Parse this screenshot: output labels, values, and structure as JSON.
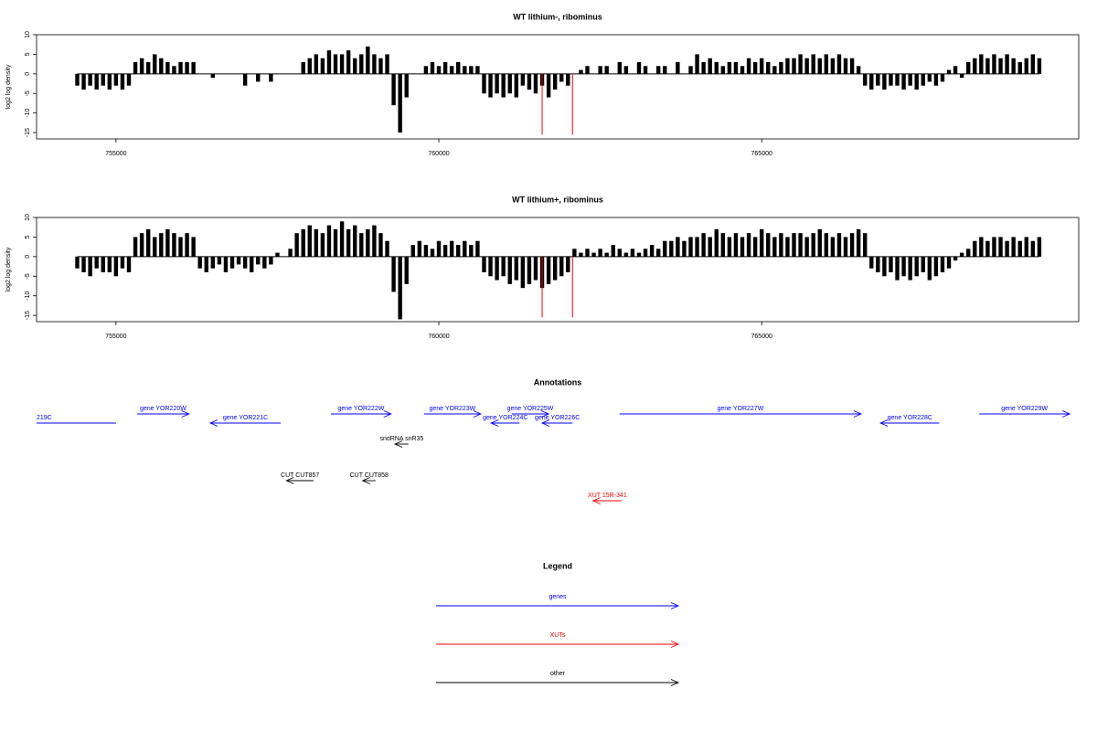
{
  "chart_data": [
    {
      "type": "bar",
      "title": "WT lithium-, ribominus",
      "ylabel": "log2 log density",
      "color": "#000000",
      "xlim": [
        753770,
        769910
      ],
      "xticks": [
        755000,
        760000,
        765000
      ],
      "ylim": [
        -16.6,
        10
      ],
      "yticks": [
        10,
        5,
        0,
        -5,
        -10,
        -15
      ],
      "x": [
        754400,
        754500,
        754600,
        754700,
        754800,
        754900,
        755000,
        755100,
        755200,
        755300,
        755400,
        755500,
        755600,
        755700,
        755800,
        755900,
        756000,
        756100,
        756200,
        756300,
        756400,
        756500,
        756600,
        756700,
        756800,
        756900,
        757000,
        757100,
        757200,
        757300,
        757400,
        757500,
        757600,
        757700,
        757800,
        757900,
        758000,
        758100,
        758200,
        758300,
        758400,
        758500,
        758600,
        758700,
        758800,
        758900,
        759000,
        759100,
        759200,
        759300,
        759400,
        759500,
        759600,
        759700,
        759800,
        759900,
        760000,
        760100,
        760200,
        760300,
        760400,
        760500,
        760600,
        760700,
        760800,
        760900,
        761000,
        761100,
        761200,
        761300,
        761400,
        761500,
        761600,
        761700,
        761800,
        761900,
        762000,
        762100,
        762200,
        762300,
        762400,
        762500,
        762600,
        762700,
        762800,
        762900,
        763000,
        763100,
        763200,
        763300,
        763400,
        763500,
        763600,
        763700,
        763800,
        763900,
        764000,
        764100,
        764200,
        764300,
        764400,
        764500,
        764600,
        764700,
        764800,
        764900,
        765000,
        765100,
        765200,
        765300,
        765400,
        765500,
        765600,
        765700,
        765800,
        765900,
        766000,
        766100,
        766200,
        766300,
        766400,
        766500,
        766600,
        766700,
        766800,
        766900,
        767000,
        767100,
        767200,
        767300,
        767400,
        767500,
        767600,
        767700,
        767800,
        767900,
        768000,
        768100,
        768200,
        768300,
        768400,
        768500,
        768600,
        768700,
        768800,
        768900,
        769000,
        769100,
        769200,
        769300
      ],
      "values": [
        -3,
        -4,
        -3,
        -4,
        -3,
        -4,
        -3,
        -4,
        -3,
        3,
        4,
        3,
        5,
        4,
        3,
        2,
        3,
        3,
        3,
        0,
        0,
        -1,
        0,
        0,
        0,
        0,
        -3,
        0,
        -2,
        0,
        -2,
        0,
        0,
        0,
        0,
        3,
        4,
        5,
        4,
        6,
        5,
        5,
        6,
        4,
        5,
        7,
        5,
        4,
        5,
        -8,
        -15,
        -6,
        0,
        0,
        2,
        3,
        2,
        3,
        2,
        3,
        2,
        2,
        2,
        -5,
        -6,
        -5,
        -6,
        -5,
        -6,
        -3,
        -4,
        -5,
        -3,
        -6,
        -4,
        -2,
        -3,
        0,
        1,
        2,
        0,
        2,
        2,
        0,
        3,
        2,
        0,
        3,
        2,
        0,
        2,
        2,
        0,
        3,
        0,
        2,
        5,
        3,
        4,
        3,
        2,
        3,
        3,
        2,
        4,
        3,
        4,
        3,
        2,
        3,
        4,
        4,
        5,
        4,
        5,
        4,
        5,
        4,
        5,
        4,
        4,
        2,
        -3,
        -4,
        -3,
        -4,
        -3,
        -3,
        -4,
        -3,
        -4,
        -3,
        -2,
        -3,
        -2,
        1,
        2,
        -1,
        3,
        4,
        5,
        4,
        5,
        4,
        5,
        4,
        3,
        4,
        5,
        4
      ],
      "markers": {
        "color": "#ff0000",
        "x": [
          761600,
          762070
        ],
        "values": [
          -15.5,
          -15.5
        ]
      }
    },
    {
      "type": "bar",
      "title": "WT lithium+, ribominus",
      "ylabel": "log2 log density",
      "color": "#000000",
      "xlim": [
        753770,
        769910
      ],
      "xticks": [
        755000,
        760000,
        765000
      ],
      "ylim": [
        -16.6,
        10
      ],
      "yticks": [
        10,
        5,
        0,
        -5,
        -10,
        -15
      ],
      "x": [
        754400,
        754500,
        754600,
        754700,
        754800,
        754900,
        755000,
        755100,
        755200,
        755300,
        755400,
        755500,
        755600,
        755700,
        755800,
        755900,
        756000,
        756100,
        756200,
        756300,
        756400,
        756500,
        756600,
        756700,
        756800,
        756900,
        757000,
        757100,
        757200,
        757300,
        757400,
        757500,
        757600,
        757700,
        757800,
        757900,
        758000,
        758100,
        758200,
        758300,
        758400,
        758500,
        758600,
        758700,
        758800,
        758900,
        759000,
        759100,
        759200,
        759300,
        759400,
        759500,
        759600,
        759700,
        759800,
        759900,
        760000,
        760100,
        760200,
        760300,
        760400,
        760500,
        760600,
        760700,
        760800,
        760900,
        761000,
        761100,
        761200,
        761300,
        761400,
        761500,
        761600,
        761700,
        761800,
        761900,
        762000,
        762100,
        762200,
        762300,
        762400,
        762500,
        762600,
        762700,
        762800,
        762900,
        763000,
        763100,
        763200,
        763300,
        763400,
        763500,
        763600,
        763700,
        763800,
        763900,
        764000,
        764100,
        764200,
        764300,
        764400,
        764500,
        764600,
        764700,
        764800,
        764900,
        765000,
        765100,
        765200,
        765300,
        765400,
        765500,
        765600,
        765700,
        765800,
        765900,
        766000,
        766100,
        766200,
        766300,
        766400,
        766500,
        766600,
        766700,
        766800,
        766900,
        767000,
        767100,
        767200,
        767300,
        767400,
        767500,
        767600,
        767700,
        767800,
        767900,
        768000,
        768100,
        768200,
        768300,
        768400,
        768500,
        768600,
        768700,
        768800,
        768900,
        769000,
        769100,
        769200,
        769300
      ],
      "values": [
        -3,
        -4,
        -5,
        -3,
        -4,
        -4,
        -5,
        -3,
        -4,
        5,
        6,
        7,
        5,
        6,
        7,
        6,
        5,
        6,
        5,
        -3,
        -4,
        -3,
        -2,
        -4,
        -3,
        -2,
        -3,
        -4,
        -2,
        -3,
        -2,
        1,
        0,
        2,
        6,
        7,
        8,
        7,
        6,
        8,
        7,
        9,
        7,
        8,
        6,
        7,
        8,
        6,
        4,
        -9,
        -16,
        -7,
        3,
        4,
        3,
        2,
        4,
        3,
        4,
        3,
        4,
        3,
        4,
        -4,
        -5,
        -6,
        -5,
        -7,
        -6,
        -8,
        -7,
        -6,
        -8,
        -7,
        -6,
        -5,
        -4,
        2,
        1,
        2,
        1,
        2,
        1,
        3,
        2,
        1,
        2,
        1,
        2,
        3,
        2,
        4,
        4,
        5,
        4,
        5,
        5,
        6,
        5,
        7,
        6,
        5,
        6,
        5,
        6,
        5,
        7,
        6,
        5,
        6,
        5,
        6,
        6,
        5,
        6,
        7,
        6,
        5,
        6,
        5,
        6,
        7,
        6,
        -3,
        -4,
        -5,
        -4,
        -6,
        -5,
        -6,
        -5,
        -4,
        -6,
        -5,
        -4,
        -3,
        -1,
        1,
        2,
        4,
        5,
        4,
        5,
        5,
        4,
        5,
        4,
        5,
        4,
        5
      ],
      "markers": {
        "color": "#ff0000",
        "x": [
          761600,
          762070
        ],
        "values": [
          -15.5,
          -15.5
        ]
      }
    }
  ],
  "annotations": {
    "title": "Annotations",
    "features": [
      {
        "label": "219C",
        "start": 753500,
        "end": 755000,
        "strand": "-",
        "color": "#0000ff"
      },
      {
        "label": "gene YOR220W",
        "start": 755330,
        "end": 756130,
        "strand": "+",
        "color": "#0000ff"
      },
      {
        "label": "gene YOR221C",
        "start": 756460,
        "end": 757550,
        "strand": "-",
        "color": "#0000ff"
      },
      {
        "label": "gene YOR222W",
        "start": 758330,
        "end": 759260,
        "strand": "+",
        "color": "#0000ff"
      },
      {
        "label": "gene YOR223W",
        "start": 759770,
        "end": 760650,
        "strand": "+",
        "color": "#0000ff"
      },
      {
        "label": "gene YOR224C",
        "start": 760810,
        "end": 761250,
        "strand": "-",
        "color": "#0000ff"
      },
      {
        "label": "gene YOR225W",
        "start": 761130,
        "end": 761700,
        "strand": "+",
        "color": "#0000ff"
      },
      {
        "label": "gene YOR226C",
        "start": 761600,
        "end": 762070,
        "strand": "-",
        "color": "#0000ff"
      },
      {
        "label": "gene YOR227W",
        "start": 762800,
        "end": 766540,
        "strand": "+",
        "color": "#0000ff"
      },
      {
        "label": "gene YOR228C",
        "start": 766840,
        "end": 767750,
        "strand": "-",
        "color": "#0000ff"
      },
      {
        "label": "gene YOR229W",
        "start": 768370,
        "end": 769770,
        "strand": "+",
        "color": "#0000ff"
      },
      {
        "label": "snoRNA snR35",
        "start": 759320,
        "end": 759530,
        "strand": "-",
        "color": "#000000"
      },
      {
        "label": "CUT CUT857",
        "start": 757640,
        "end": 758060,
        "strand": "-",
        "color": "#000000"
      },
      {
        "label": "CUT CUT858",
        "start": 758820,
        "end": 759020,
        "strand": "-",
        "color": "#000000"
      },
      {
        "label": "XUT 15R-341",
        "start": 762390,
        "end": 762830,
        "strand": "-",
        "color": "#ff0000"
      }
    ]
  },
  "legend": {
    "title": "Legend",
    "items": [
      {
        "label": "genes",
        "color": "#0000ff"
      },
      {
        "label": "XUTs",
        "color": "#ff0000"
      },
      {
        "label": "other",
        "color": "#000000"
      }
    ]
  }
}
